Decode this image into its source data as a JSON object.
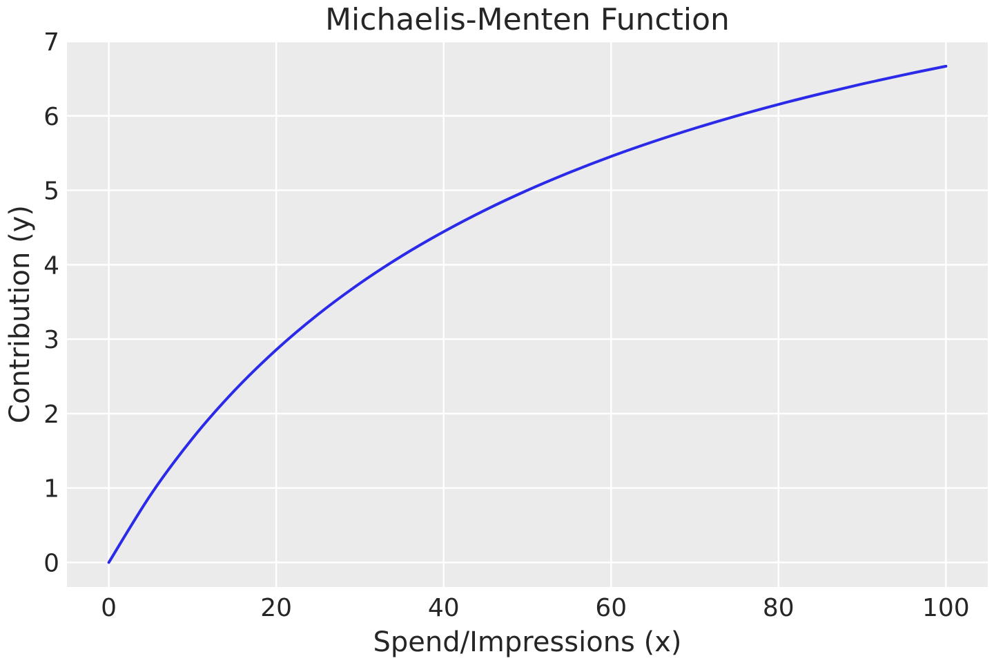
{
  "chart_data": {
    "type": "line",
    "title": "Michaelis-Menten Function",
    "xlabel": "Spend/Impressions (x)",
    "ylabel": "Contribution (y)",
    "xlim": [
      -5,
      105
    ],
    "ylim": [
      -0.33,
      7
    ],
    "xticks": [
      0,
      20,
      40,
      60,
      80,
      100
    ],
    "yticks": [
      0,
      1,
      2,
      3,
      4,
      5,
      6,
      7
    ],
    "grid": true,
    "background": "#ebebeb",
    "series": [
      {
        "color": "#2a2ae8",
        "x": [
          0,
          5,
          10,
          15,
          20,
          25,
          30,
          35,
          40,
          45,
          50,
          55,
          60,
          65,
          70,
          75,
          80,
          85,
          90,
          95,
          100
        ],
        "y": [
          0,
          0.909,
          1.667,
          2.308,
          2.857,
          3.333,
          3.75,
          4.118,
          4.444,
          4.737,
          5.0,
          5.238,
          5.455,
          5.652,
          5.833,
          6.0,
          6.154,
          6.296,
          6.429,
          6.552,
          6.667
        ]
      }
    ]
  }
}
